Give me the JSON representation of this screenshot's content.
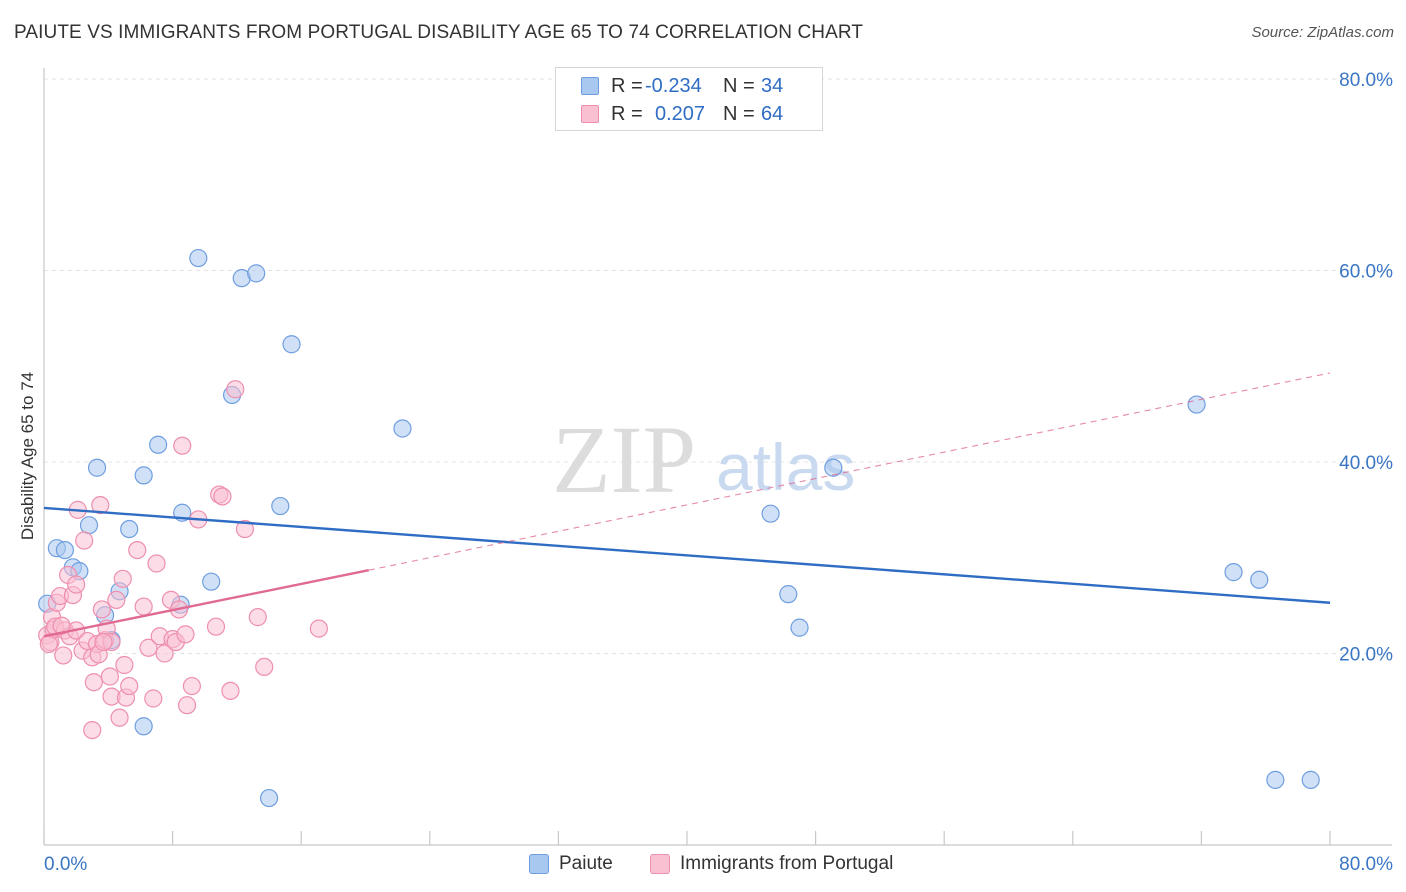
{
  "title": "PAIUTE VS IMMIGRANTS FROM PORTUGAL DISABILITY AGE 65 TO 74 CORRELATION CHART",
  "source": "Source: ZipAtlas.com",
  "watermark": {
    "zip": "ZIP",
    "atlas": "atlas"
  },
  "legend": {
    "rows": [
      {
        "r_label": "R =",
        "r_value": "-0.234",
        "n_label": "N =",
        "n_value": "34",
        "color": "#a9c8f0",
        "border": "#6f9ee0"
      },
      {
        "r_label": "R =",
        "r_value": "0.207",
        "n_label": "N =",
        "n_value": "64",
        "color": "#f9c0d2",
        "border": "#ee8fae"
      }
    ]
  },
  "bottom_legend": [
    {
      "label": "Paiute",
      "color": "#a9c8f0",
      "border": "#6f9ee0"
    },
    {
      "label": "Immigrants from Portugal",
      "color": "#f9c0d2",
      "border": "#ee8fae"
    }
  ],
  "chart_data": {
    "type": "scatter",
    "ylabel": "Disability Age 65 to 74",
    "xlabel": "",
    "xlim": [
      0,
      80
    ],
    "ylim": [
      0,
      80
    ],
    "x_tick_labels": {
      "min": "0.0%",
      "max": "80.0%"
    },
    "y_ticks": [
      {
        "value": 20,
        "label": "20.0%"
      },
      {
        "value": 40,
        "label": "40.0%"
      },
      {
        "value": 60,
        "label": "60.0%"
      },
      {
        "value": 80,
        "label": "80.0%"
      }
    ],
    "grid": true,
    "series": [
      {
        "name": "Paiute",
        "color": "#a9c8f0",
        "stroke": "#6f9ee0",
        "trend_color": "#2f6dc4",
        "trend": {
          "x1": 0,
          "y1": 35.2,
          "x2": 80,
          "y2": 25.3,
          "dashed_to": null
        },
        "points": [
          [
            0.2,
            25.2
          ],
          [
            0.8,
            31.0
          ],
          [
            1.3,
            30.8
          ],
          [
            1.8,
            29.0
          ],
          [
            2.2,
            28.6
          ],
          [
            2.8,
            33.4
          ],
          [
            3.3,
            39.4
          ],
          [
            3.8,
            24.0
          ],
          [
            4.2,
            21.4
          ],
          [
            4.7,
            26.5
          ],
          [
            5.3,
            33.0
          ],
          [
            6.2,
            12.4
          ],
          [
            6.2,
            38.6
          ],
          [
            7.1,
            41.8
          ],
          [
            8.5,
            25.1
          ],
          [
            8.6,
            34.7
          ],
          [
            9.6,
            61.3
          ],
          [
            10.4,
            27.5
          ],
          [
            11.7,
            47.0
          ],
          [
            12.3,
            59.2
          ],
          [
            13.2,
            59.7
          ],
          [
            14.0,
            4.9
          ],
          [
            14.7,
            35.4
          ],
          [
            15.4,
            52.3
          ],
          [
            22.3,
            43.5
          ],
          [
            45.2,
            34.6
          ],
          [
            46.3,
            26.2
          ],
          [
            47.0,
            22.7
          ],
          [
            49.1,
            39.4
          ],
          [
            71.7,
            46.0
          ],
          [
            74.0,
            28.5
          ],
          [
            75.6,
            27.7
          ],
          [
            76.6,
            6.8
          ],
          [
            78.8,
            6.8
          ]
        ]
      },
      {
        "name": "Immigrants from Portugal",
        "color": "#f9c0d2",
        "stroke": "#ee8fae",
        "trend_color": "#e06a92",
        "trend": {
          "x1": 0,
          "y1": 21.8,
          "x2": 20.2,
          "y2": 28.7,
          "dashed_to": {
            "x": 80,
            "y": 49.3
          }
        },
        "points": [
          [
            0.2,
            21.9
          ],
          [
            0.4,
            21.2
          ],
          [
            0.5,
            23.8
          ],
          [
            0.6,
            22.5
          ],
          [
            0.7,
            22.8
          ],
          [
            0.8,
            25.3
          ],
          [
            1.0,
            26.0
          ],
          [
            1.2,
            19.8
          ],
          [
            1.3,
            22.4
          ],
          [
            1.5,
            28.2
          ],
          [
            1.6,
            21.8
          ],
          [
            1.8,
            26.1
          ],
          [
            2.0,
            22.4
          ],
          [
            2.0,
            27.2
          ],
          [
            2.1,
            35.0
          ],
          [
            2.4,
            20.3
          ],
          [
            2.5,
            31.8
          ],
          [
            2.7,
            21.3
          ],
          [
            3.0,
            12.0
          ],
          [
            3.0,
            19.6
          ],
          [
            3.1,
            17.0
          ],
          [
            3.3,
            21.0
          ],
          [
            3.4,
            19.9
          ],
          [
            3.5,
            35.5
          ],
          [
            3.6,
            24.6
          ],
          [
            3.8,
            21.4
          ],
          [
            3.9,
            22.6
          ],
          [
            4.1,
            17.6
          ],
          [
            4.2,
            21.2
          ],
          [
            4.2,
            15.5
          ],
          [
            4.5,
            25.6
          ],
          [
            4.7,
            13.3
          ],
          [
            4.9,
            27.8
          ],
          [
            5.0,
            18.8
          ],
          [
            5.1,
            15.4
          ],
          [
            5.3,
            16.6
          ],
          [
            5.8,
            30.8
          ],
          [
            6.2,
            24.9
          ],
          [
            6.5,
            20.6
          ],
          [
            6.8,
            15.3
          ],
          [
            7.0,
            29.4
          ],
          [
            7.2,
            21.8
          ],
          [
            7.5,
            20.0
          ],
          [
            7.9,
            25.6
          ],
          [
            8.0,
            21.5
          ],
          [
            8.2,
            21.2
          ],
          [
            8.4,
            24.6
          ],
          [
            8.6,
            41.7
          ],
          [
            8.8,
            22.0
          ],
          [
            8.9,
            14.6
          ],
          [
            9.2,
            16.6
          ],
          [
            9.6,
            34.0
          ],
          [
            10.7,
            22.8
          ],
          [
            10.9,
            36.6
          ],
          [
            11.1,
            36.4
          ],
          [
            11.6,
            16.1
          ],
          [
            11.9,
            47.6
          ],
          [
            12.5,
            33.0
          ],
          [
            13.3,
            23.8
          ],
          [
            13.7,
            18.6
          ],
          [
            17.1,
            22.6
          ],
          [
            0.3,
            21.0
          ],
          [
            1.1,
            22.9
          ],
          [
            3.7,
            21.2
          ]
        ]
      }
    ]
  }
}
